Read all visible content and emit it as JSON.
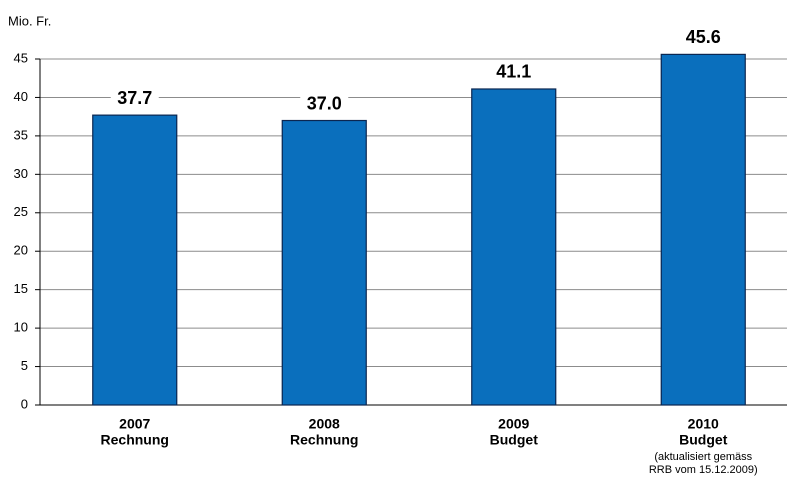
{
  "chart_data": {
    "type": "bar",
    "y_axis_label": "Mio. Fr.",
    "categories": [
      [
        "2007",
        "Rechnung"
      ],
      [
        "2008",
        "Rechnung"
      ],
      [
        "2009",
        "Budget"
      ],
      [
        "2010",
        "Budget",
        "(aktualisiert gemäss",
        "RRB vom 15.12.2009)"
      ]
    ],
    "values": [
      37.7,
      37.0,
      41.1,
      45.6
    ],
    "value_labels": [
      "37.7",
      "37.0",
      "41.1",
      "45.6"
    ],
    "color": "#0a6fbd",
    "ylim": [
      0,
      45
    ],
    "yticks": [
      0,
      5,
      10,
      15,
      20,
      25,
      30,
      35,
      40,
      45
    ],
    "grid": true
  }
}
